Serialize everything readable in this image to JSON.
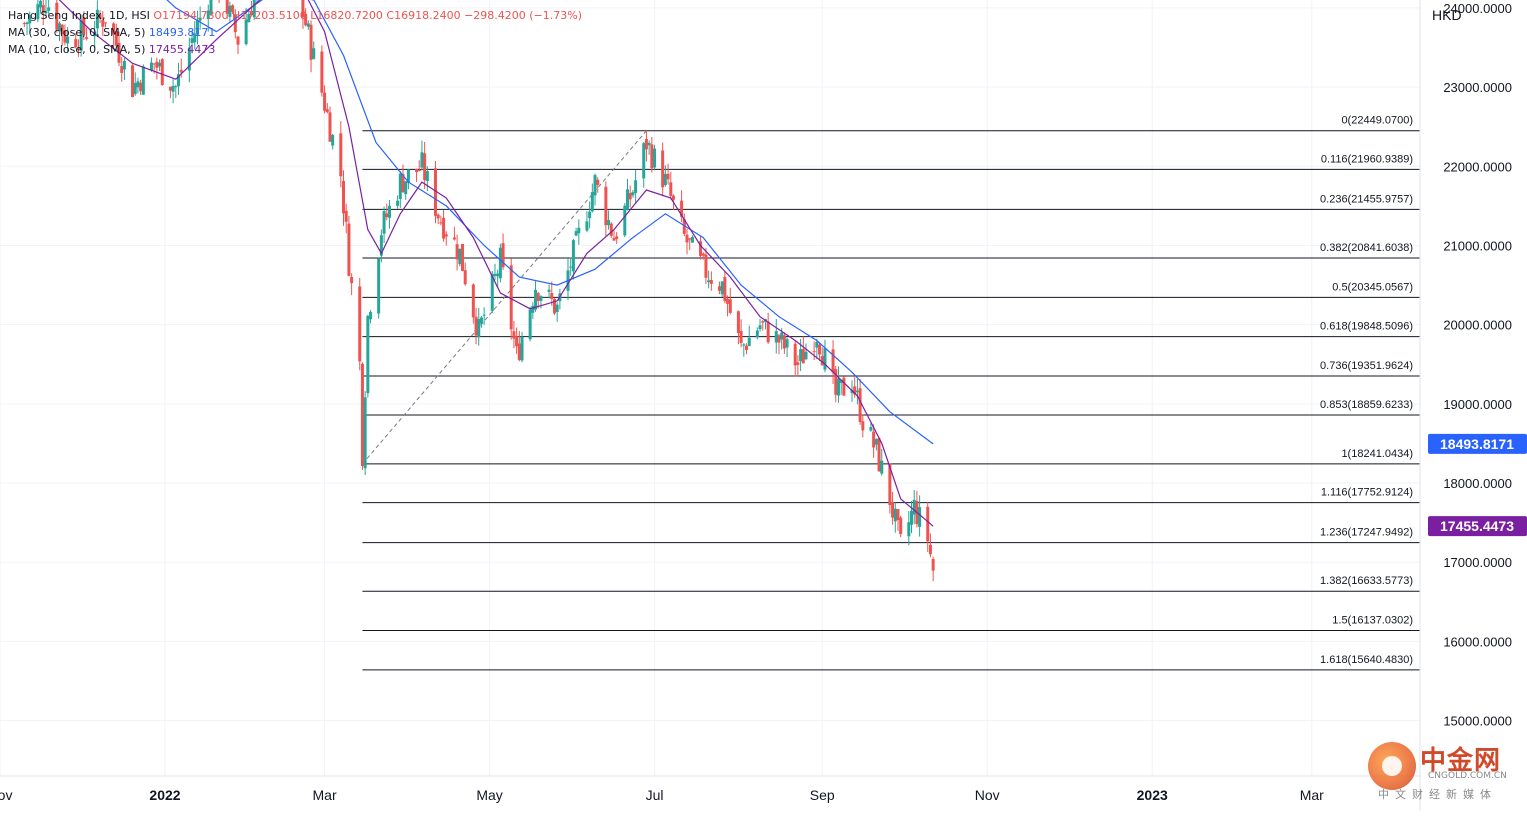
{
  "legend": {
    "symbol": "Hang Seng Index, 1D, HSI",
    "ohlc": "O17194.7300 H17203.5100 L16820.7200 C16918.2400 −298.4200 (−1.73%)",
    "ma30_label": "MA (30, close, 0, SMA, 5)",
    "ma30_value": "18493.8171",
    "ma10_label": "MA (10, close, 0, SMA, 5)",
    "ma10_value": "17455.4473"
  },
  "price_axis": {
    "currency": "HKD",
    "ticks": [
      "24000.0000",
      "23000.0000",
      "22000.0000",
      "21000.0000",
      "20000.0000",
      "19000.0000",
      "18000.0000",
      "17000.0000",
      "16000.0000",
      "15000.0000"
    ],
    "ma30_badge": "18493.8171",
    "ma10_badge": "17455.4473"
  },
  "time_axis": {
    "labels": [
      "Nov",
      "2022",
      "Mar",
      "May",
      "Jul",
      "Sep",
      "Nov",
      "2023",
      "Mar"
    ],
    "bold": [
      "2022",
      "2023"
    ]
  },
  "colors": {
    "up": "#26a69a",
    "down": "#ef5350",
    "ma30": "#2962ff",
    "ma10": "#7b1fa2",
    "fib_line": "#131722",
    "ma30_badge_bg": "#2962ff",
    "ma10_badge_bg": "#7b1fa2"
  },
  "watermark": {
    "brand_cn": "中金网",
    "brand_en": "CNGOLD.COM.CN",
    "tagline": "中文财经新媒体"
  },
  "chart_data": {
    "type": "candlestick",
    "title": "Hang Seng Index, 1D, HSI",
    "y_unit": "HKD",
    "ylim": [
      14300,
      24100
    ],
    "x_range": [
      "2021-11-01",
      "2023-04-10"
    ],
    "grid": true,
    "fibonacci": {
      "from_date": "2022-03-15",
      "from_price": 18241.0434,
      "to_date": "2022-06-28",
      "to_price": 22449.07,
      "levels": [
        {
          "label": "0(22449.0700)",
          "price": 22449.07
        },
        {
          "label": "0.116(21960.9389)",
          "price": 21960.9389
        },
        {
          "label": "0.236(21455.9757)",
          "price": 21455.9757
        },
        {
          "label": "0.382(20841.6038)",
          "price": 20841.6038
        },
        {
          "label": "0.5(20345.0567)",
          "price": 20345.0567
        },
        {
          "label": "0.618(19848.5096)",
          "price": 19848.5096
        },
        {
          "label": "0.736(19351.9624)",
          "price": 19351.9624
        },
        {
          "label": "0.853(18859.6233)",
          "price": 18859.6233
        },
        {
          "label": "1(18241.0434)",
          "price": 18241.0434
        },
        {
          "label": "1.116(17752.9124)",
          "price": 17752.9124
        },
        {
          "label": "1.236(17247.9492)",
          "price": 17247.9492
        },
        {
          "label": "1.382(16633.5773)",
          "price": 16633.5773
        },
        {
          "label": "1.5(16137.0302)",
          "price": 16137.0302
        },
        {
          "label": "1.618(15640.4830)",
          "price": 15640.483
        }
      ]
    },
    "close_path": [
      [
        "2021-11-10",
        23800
      ],
      [
        "2021-11-18",
        24100
      ],
      [
        "2021-11-26",
        23600
      ],
      [
        "2021-12-03",
        23700
      ],
      [
        "2021-12-10",
        23900
      ],
      [
        "2021-12-20",
        23000
      ],
      [
        "2021-12-28",
        23300
      ],
      [
        "2022-01-05",
        23000
      ],
      [
        "2022-01-12",
        23700
      ],
      [
        "2022-01-20",
        24400
      ],
      [
        "2022-01-28",
        23600
      ],
      [
        "2022-02-07",
        24500
      ],
      [
        "2022-02-15",
        24700
      ],
      [
        "2022-02-22",
        23800
      ],
      [
        "2022-03-01",
        22800
      ],
      [
        "2022-03-07",
        21900
      ],
      [
        "2022-03-10",
        20800
      ],
      [
        "2022-03-14",
        19500
      ],
      [
        "2022-03-15",
        18400
      ],
      [
        "2022-03-17",
        20100
      ],
      [
        "2022-03-22",
        21200
      ],
      [
        "2022-03-29",
        21800
      ],
      [
        "2022-04-06",
        22000
      ],
      [
        "2022-04-12",
        21400
      ],
      [
        "2022-04-20",
        20900
      ],
      [
        "2022-04-27",
        19900
      ],
      [
        "2022-05-05",
        20800
      ],
      [
        "2022-05-11",
        19600
      ],
      [
        "2022-05-18",
        20500
      ],
      [
        "2022-05-26",
        20200
      ],
      [
        "2022-06-02",
        21000
      ],
      [
        "2022-06-09",
        21800
      ],
      [
        "2022-06-16",
        21100
      ],
      [
        "2022-06-23",
        21700
      ],
      [
        "2022-06-28",
        22300
      ],
      [
        "2022-07-05",
        21800
      ],
      [
        "2022-07-12",
        21100
      ],
      [
        "2022-07-19",
        20700
      ],
      [
        "2022-07-26",
        20500
      ],
      [
        "2022-08-02",
        19700
      ],
      [
        "2022-08-09",
        20000
      ],
      [
        "2022-08-16",
        19800
      ],
      [
        "2022-08-23",
        19500
      ],
      [
        "2022-08-30",
        19900
      ],
      [
        "2022-09-06",
        19100
      ],
      [
        "2022-09-12",
        19300
      ],
      [
        "2022-09-16",
        18800
      ],
      [
        "2022-09-21",
        18400
      ],
      [
        "2022-09-26",
        17800
      ],
      [
        "2022-09-30",
        17200
      ],
      [
        "2022-10-05",
        17700
      ],
      [
        "2022-10-10",
        17300
      ],
      [
        "2022-10-12",
        16900
      ]
    ],
    "ma30_path": [
      [
        "2021-12-20",
        24500
      ],
      [
        "2022-01-05",
        24000
      ],
      [
        "2022-01-20",
        23700
      ],
      [
        "2022-02-10",
        24200
      ],
      [
        "2022-02-25",
        24100
      ],
      [
        "2022-03-08",
        23400
      ],
      [
        "2022-03-20",
        22300
      ],
      [
        "2022-04-01",
        21800
      ],
      [
        "2022-04-15",
        21500
      ],
      [
        "2022-04-29",
        21000
      ],
      [
        "2022-05-12",
        20600
      ],
      [
        "2022-05-26",
        20500
      ],
      [
        "2022-06-09",
        20700
      ],
      [
        "2022-06-23",
        21100
      ],
      [
        "2022-07-05",
        21400
      ],
      [
        "2022-07-19",
        21100
      ],
      [
        "2022-08-02",
        20500
      ],
      [
        "2022-08-16",
        20100
      ],
      [
        "2022-08-30",
        19800
      ],
      [
        "2022-09-12",
        19400
      ],
      [
        "2022-09-26",
        18900
      ],
      [
        "2022-10-12",
        18494
      ]
    ],
    "ma10_path": [
      [
        "2021-11-20",
        24200
      ],
      [
        "2021-12-05",
        23700
      ],
      [
        "2021-12-20",
        23300
      ],
      [
        "2022-01-05",
        23100
      ],
      [
        "2022-01-20",
        23600
      ],
      [
        "2022-02-05",
        24100
      ],
      [
        "2022-02-20",
        24300
      ],
      [
        "2022-03-01",
        23700
      ],
      [
        "2022-03-10",
        22500
      ],
      [
        "2022-03-17",
        21200
      ],
      [
        "2022-03-22",
        20900
      ],
      [
        "2022-03-29",
        21400
      ],
      [
        "2022-04-06",
        21800
      ],
      [
        "2022-04-15",
        21600
      ],
      [
        "2022-04-25",
        21100
      ],
      [
        "2022-05-05",
        20400
      ],
      [
        "2022-05-16",
        20200
      ],
      [
        "2022-05-26",
        20300
      ],
      [
        "2022-06-06",
        20900
      ],
      [
        "2022-06-16",
        21200
      ],
      [
        "2022-06-28",
        21700
      ],
      [
        "2022-07-07",
        21600
      ],
      [
        "2022-07-18",
        21000
      ],
      [
        "2022-07-29",
        20600
      ],
      [
        "2022-08-09",
        20100
      ],
      [
        "2022-08-22",
        19800
      ],
      [
        "2022-09-02",
        19500
      ],
      [
        "2022-09-14",
        19100
      ],
      [
        "2022-09-23",
        18500
      ],
      [
        "2022-09-30",
        17800
      ],
      [
        "2022-10-07",
        17600
      ],
      [
        "2022-10-12",
        17455
      ]
    ]
  }
}
